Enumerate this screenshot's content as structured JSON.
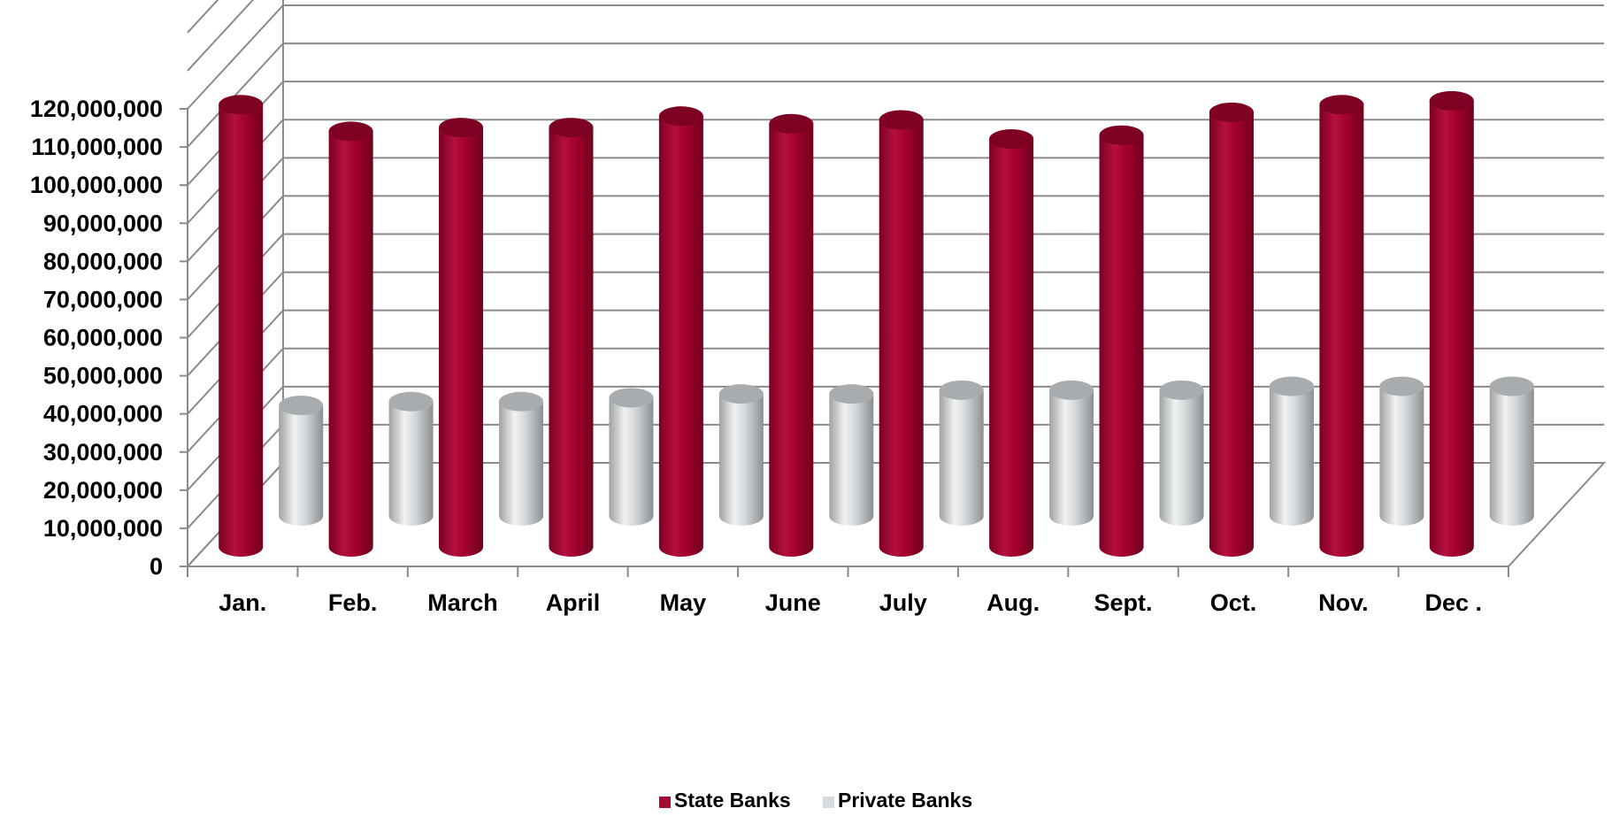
{
  "chart_data": {
    "type": "bar",
    "categories": [
      "Jan.",
      "Feb.",
      "March",
      "April",
      "May",
      "June",
      "July",
      "Aug.",
      "Sept.",
      "Oct.",
      "Nov.",
      "Dec ."
    ],
    "series": [
      {
        "name": "State Banks",
        "color": "#A50A35",
        "values": [
          116000000,
          109000000,
          110000000,
          110000000,
          113000000,
          111000000,
          112000000,
          107000000,
          108000000,
          114000000,
          116000000,
          117000000
        ]
      },
      {
        "name": "Private Banks",
        "color": "#D7DADC",
        "values": [
          29000000,
          30000000,
          30000000,
          31000000,
          32000000,
          32000000,
          33000000,
          33000000,
          33000000,
          34000000,
          34000000,
          34000000
        ]
      }
    ],
    "y_ticks": [
      "0",
      "10,000,000",
      "20,000,000",
      "30,000,000",
      "40,000,000",
      "50,000,000",
      "60,000,000",
      "70,000,000",
      "80,000,000",
      "90,000,000",
      "100,000,000",
      "110,000,000",
      "120,000,000"
    ],
    "ylim": [
      0,
      120000000
    ],
    "ytick_step": 10000000,
    "grid": true,
    "legend_position": "bottom-center",
    "wall_color": "#8A8A8A"
  }
}
